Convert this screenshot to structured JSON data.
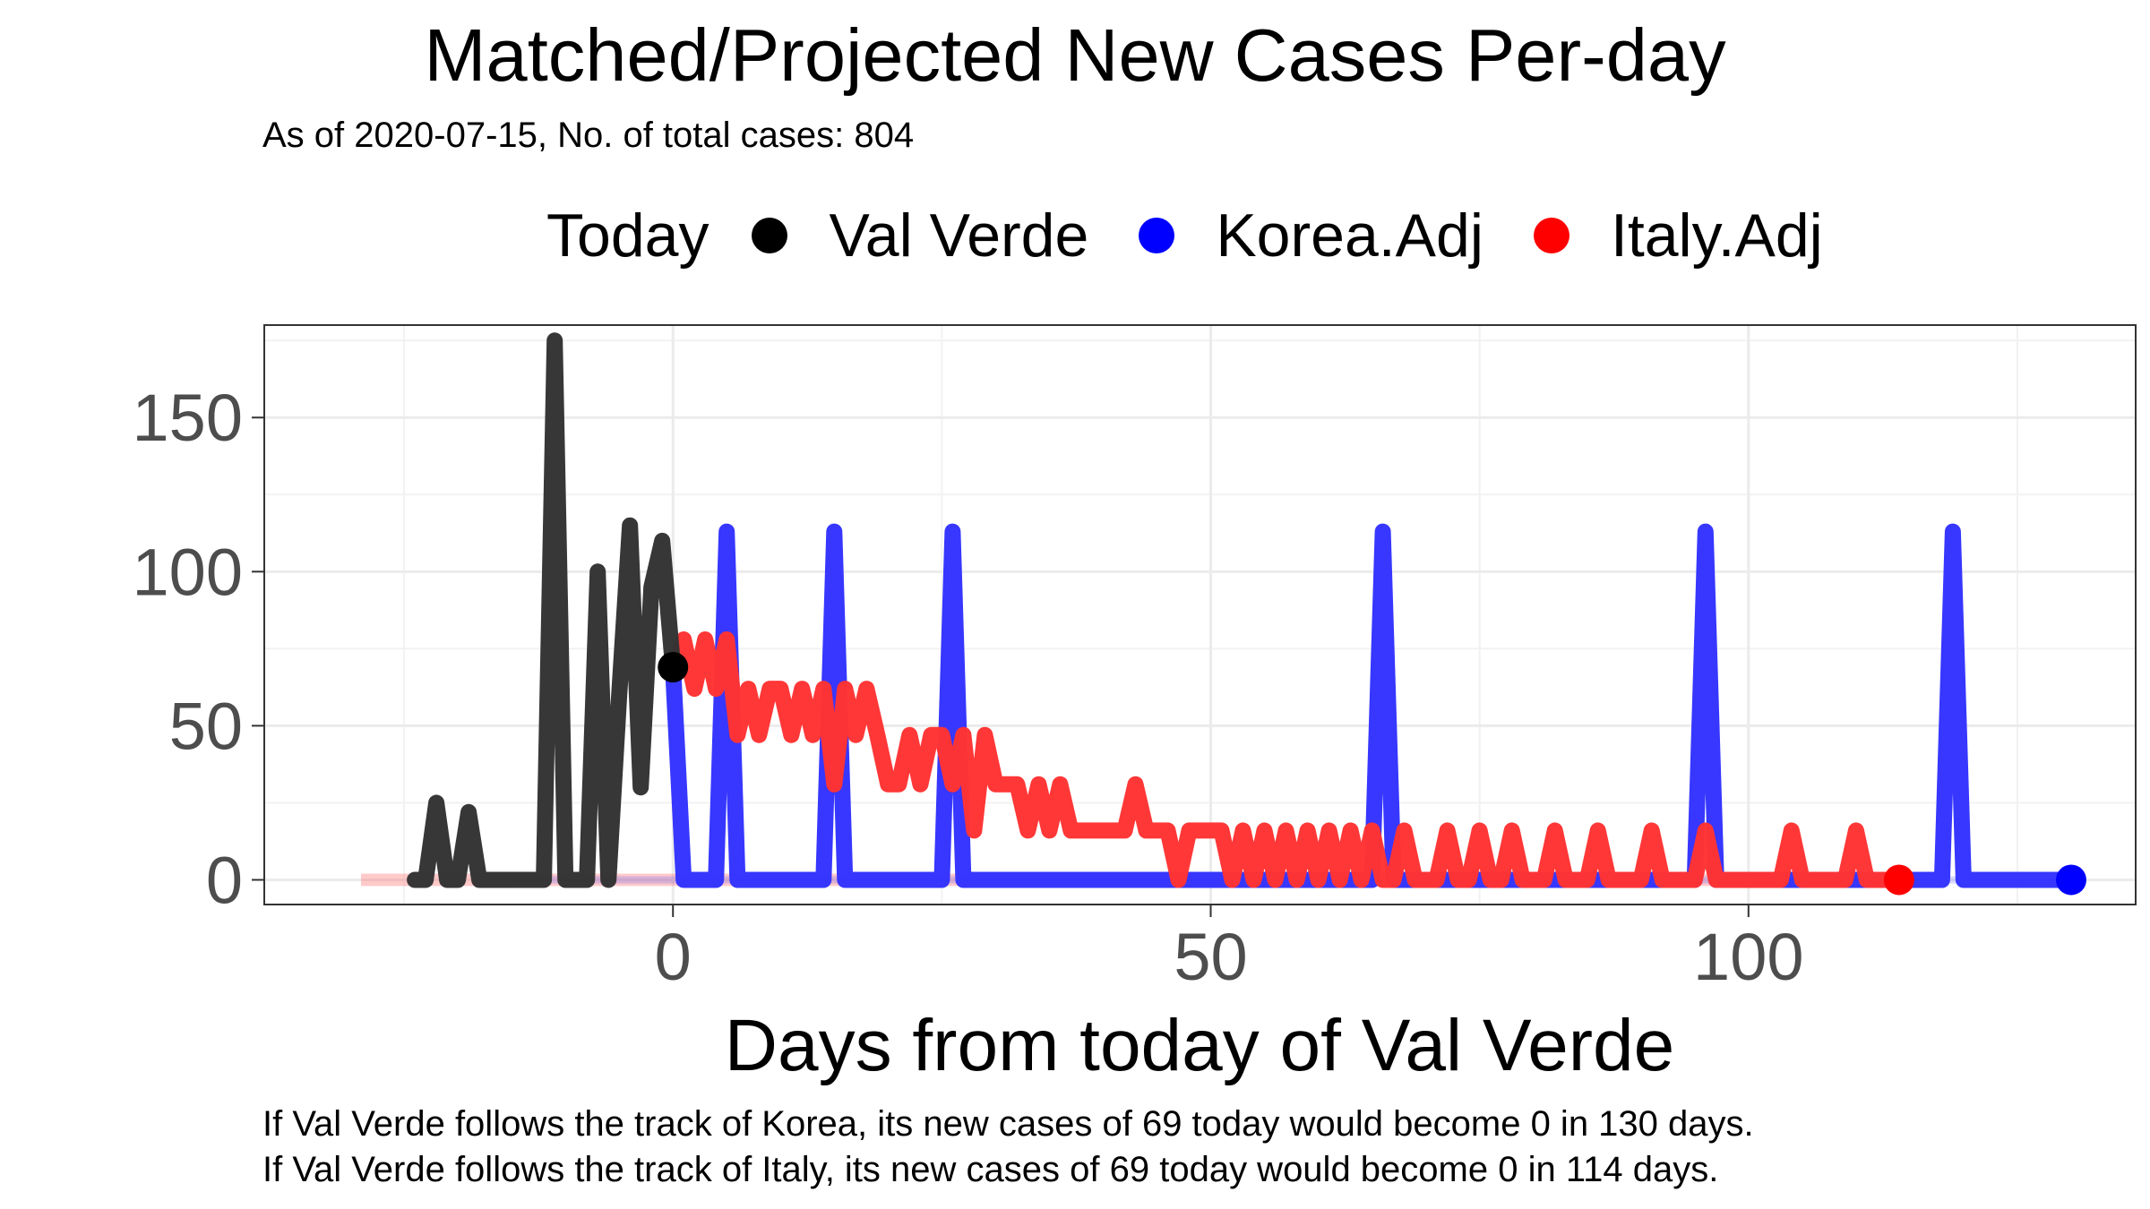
{
  "chart_data": {
    "type": "line",
    "title": "Matched/Projected New Cases Per-day",
    "subtitle": "As of 2020-07-15, No. of total cases: 804",
    "xlabel": "Days from today of Val Verde",
    "ylabel": "",
    "xlim": [
      -38,
      136
    ],
    "ylim": [
      -8,
      180
    ],
    "x_ticks": [
      0,
      50,
      100
    ],
    "y_ticks": [
      0,
      50,
      100,
      150
    ],
    "grid": true,
    "legend": {
      "title": "Today",
      "position": "top",
      "entries": [
        {
          "name": "Val Verde",
          "color": "#000000"
        },
        {
          "name": "Korea.Adj",
          "color": "#0000ff"
        },
        {
          "name": "Italy.Adj",
          "color": "#ff0000"
        }
      ]
    },
    "series": [
      {
        "name": "Val Verde",
        "color": "#333333",
        "points": [
          [
            -24,
            0
          ],
          [
            -23,
            0
          ],
          [
            -22,
            25
          ],
          [
            -21,
            0
          ],
          [
            -20,
            0
          ],
          [
            -19,
            22
          ],
          [
            -18,
            0
          ],
          [
            -17,
            0
          ],
          [
            -16,
            0
          ],
          [
            -15,
            0
          ],
          [
            -14,
            0
          ],
          [
            -13,
            0
          ],
          [
            -12,
            0
          ],
          [
            -11,
            175
          ],
          [
            -10,
            0
          ],
          [
            -9,
            0
          ],
          [
            -8,
            0
          ],
          [
            -7,
            100
          ],
          [
            -6,
            0
          ],
          [
            -5,
            60
          ],
          [
            -4,
            115
          ],
          [
            -3,
            30
          ],
          [
            -2,
            95
          ],
          [
            -1,
            110
          ],
          [
            0,
            69
          ]
        ],
        "today": [
          0,
          69
        ]
      },
      {
        "name": "Korea.Adj",
        "color": "#3333ff",
        "points": [
          [
            0,
            69
          ],
          [
            1,
            0
          ],
          [
            2,
            0
          ],
          [
            3,
            0
          ],
          [
            4,
            0
          ],
          [
            5,
            113
          ],
          [
            6,
            0
          ],
          [
            7,
            0
          ],
          [
            8,
            0
          ],
          [
            9,
            0
          ],
          [
            10,
            0
          ],
          [
            11,
            0
          ],
          [
            12,
            0
          ],
          [
            13,
            0
          ],
          [
            14,
            0
          ],
          [
            15,
            113
          ],
          [
            16,
            0
          ],
          [
            17,
            0
          ],
          [
            18,
            0
          ],
          [
            19,
            0
          ],
          [
            20,
            0
          ],
          [
            21,
            0
          ],
          [
            22,
            0
          ],
          [
            23,
            0
          ],
          [
            24,
            0
          ],
          [
            25,
            0
          ],
          [
            26,
            113
          ],
          [
            27,
            0
          ],
          [
            28,
            0
          ],
          [
            64,
            0
          ],
          [
            65,
            0
          ],
          [
            66,
            113
          ],
          [
            67,
            0
          ],
          [
            68,
            0
          ],
          [
            94,
            0
          ],
          [
            95,
            0
          ],
          [
            96,
            113
          ],
          [
            97,
            0
          ],
          [
            98,
            0
          ],
          [
            117,
            0
          ],
          [
            118,
            0
          ],
          [
            119,
            113
          ],
          [
            120,
            0
          ],
          [
            121,
            0
          ],
          [
            130,
            0
          ]
        ],
        "end": [
          130,
          0
        ]
      },
      {
        "name": "Italy.Adj",
        "color": "#ff3333",
        "points": [
          [
            0,
            69
          ],
          [
            1,
            78
          ],
          [
            2,
            62
          ],
          [
            3,
            78
          ],
          [
            4,
            62
          ],
          [
            5,
            78
          ],
          [
            6,
            47
          ],
          [
            7,
            62
          ],
          [
            8,
            47
          ],
          [
            9,
            62
          ],
          [
            10,
            62
          ],
          [
            11,
            47
          ],
          [
            12,
            62
          ],
          [
            13,
            47
          ],
          [
            14,
            62
          ],
          [
            15,
            31
          ],
          [
            16,
            62
          ],
          [
            17,
            47
          ],
          [
            18,
            62
          ],
          [
            19,
            47
          ],
          [
            20,
            31
          ],
          [
            21,
            31
          ],
          [
            22,
            47
          ],
          [
            23,
            31
          ],
          [
            24,
            47
          ],
          [
            25,
            47
          ],
          [
            26,
            31
          ],
          [
            27,
            47
          ],
          [
            28,
            16
          ],
          [
            29,
            47
          ],
          [
            30,
            31
          ],
          [
            31,
            31
          ],
          [
            32,
            31
          ],
          [
            33,
            16
          ],
          [
            34,
            31
          ],
          [
            35,
            16
          ],
          [
            36,
            31
          ],
          [
            37,
            16
          ],
          [
            38,
            16
          ],
          [
            39,
            16
          ],
          [
            40,
            16
          ],
          [
            41,
            16
          ],
          [
            42,
            16
          ],
          [
            43,
            31
          ],
          [
            44,
            16
          ],
          [
            45,
            16
          ],
          [
            46,
            16
          ],
          [
            47,
            0
          ],
          [
            48,
            16
          ],
          [
            49,
            16
          ],
          [
            50,
            16
          ],
          [
            51,
            16
          ],
          [
            52,
            0
          ],
          [
            53,
            16
          ],
          [
            54,
            0
          ],
          [
            55,
            16
          ],
          [
            56,
            0
          ],
          [
            57,
            16
          ],
          [
            58,
            0
          ],
          [
            59,
            16
          ],
          [
            60,
            0
          ],
          [
            61,
            16
          ],
          [
            62,
            0
          ],
          [
            63,
            16
          ],
          [
            64,
            0
          ],
          [
            65,
            16
          ],
          [
            66,
            0
          ],
          [
            67,
            0
          ],
          [
            68,
            16
          ],
          [
            69,
            0
          ],
          [
            70,
            0
          ],
          [
            71,
            0
          ],
          [
            72,
            16
          ],
          [
            73,
            0
          ],
          [
            74,
            0
          ],
          [
            75,
            16
          ],
          [
            76,
            0
          ],
          [
            77,
            0
          ],
          [
            78,
            16
          ],
          [
            79,
            0
          ],
          [
            80,
            0
          ],
          [
            81,
            0
          ],
          [
            82,
            16
          ],
          [
            83,
            0
          ],
          [
            84,
            0
          ],
          [
            85,
            0
          ],
          [
            86,
            16
          ],
          [
            87,
            0
          ],
          [
            88,
            0
          ],
          [
            89,
            0
          ],
          [
            90,
            0
          ],
          [
            91,
            16
          ],
          [
            92,
            0
          ],
          [
            93,
            0
          ],
          [
            94,
            0
          ],
          [
            95,
            0
          ],
          [
            96,
            16
          ],
          [
            97,
            0
          ],
          [
            98,
            0
          ],
          [
            99,
            0
          ],
          [
            100,
            0
          ],
          [
            101,
            0
          ],
          [
            102,
            0
          ],
          [
            103,
            0
          ],
          [
            104,
            16
          ],
          [
            105,
            0
          ],
          [
            106,
            0
          ],
          [
            107,
            0
          ],
          [
            108,
            0
          ],
          [
            109,
            0
          ],
          [
            110,
            16
          ],
          [
            111,
            0
          ],
          [
            112,
            0
          ],
          [
            113,
            0
          ],
          [
            114,
            0
          ]
        ],
        "end": [
          114,
          0
        ]
      }
    ]
  },
  "caption": {
    "line1": "If Val Verde follows the track of Korea, its new cases of 69 today would become 0 in 130 days.",
    "line2": "If Val Verde follows the track of Italy, its new cases of 69 today would become 0 in 114 days."
  }
}
